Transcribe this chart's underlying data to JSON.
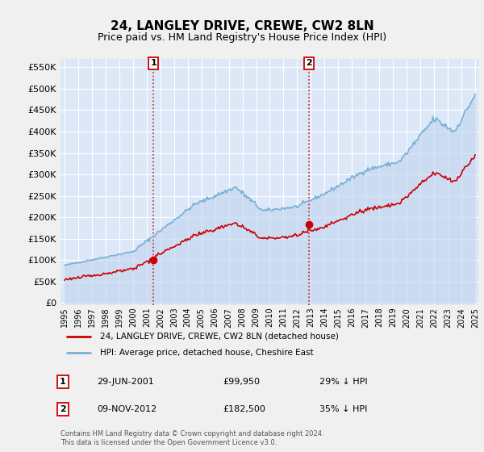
{
  "title": "24, LANGLEY DRIVE, CREWE, CW2 8LN",
  "subtitle": "Price paid vs. HM Land Registry's House Price Index (HPI)",
  "title_fontsize": 11,
  "subtitle_fontsize": 9,
  "ytick_values": [
    0,
    50000,
    100000,
    150000,
    200000,
    250000,
    300000,
    350000,
    400000,
    450000,
    500000,
    550000
  ],
  "ylim": [
    -5000,
    570000
  ],
  "fig_bg_color": "#f0f0f0",
  "plot_bg_color": "#dce8f8",
  "grid_color": "#ffffff",
  "red_color": "#cc0000",
  "blue_color": "#7aafd4",
  "fill_color": "#c5d8f0",
  "marker1_price": 99950,
  "marker2_price": 182500,
  "legend_line1": "24, LANGLEY DRIVE, CREWE, CW2 8LN (detached house)",
  "legend_line2": "HPI: Average price, detached house, Cheshire East",
  "footnote": "Contains HM Land Registry data © Crown copyright and database right 2024.\nThis data is licensed under the Open Government Licence v3.0.",
  "sale1_year": 2001.49,
  "sale2_year": 2012.86,
  "row1_date": "29-JUN-2001",
  "row1_price": "£99,950",
  "row1_hpi": "29% ↓ HPI",
  "row2_date": "09-NOV-2012",
  "row2_price": "£182,500",
  "row2_hpi": "35% ↓ HPI",
  "xtick_years": [
    1995,
    1996,
    1997,
    1998,
    1999,
    2000,
    2001,
    2002,
    2003,
    2004,
    2005,
    2006,
    2007,
    2008,
    2009,
    2010,
    2011,
    2012,
    2013,
    2014,
    2015,
    2016,
    2017,
    2018,
    2019,
    2020,
    2021,
    2022,
    2023,
    2024,
    2025
  ],
  "xlim_min": 1994.7,
  "xlim_max": 2025.3
}
